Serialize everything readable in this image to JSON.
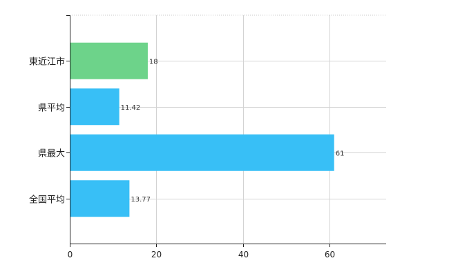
{
  "chart_data": {
    "type": "bar",
    "orientation": "horizontal",
    "categories": [
      "東近江市",
      "県平均",
      "県最大",
      "全国平均"
    ],
    "values": [
      18,
      11.42,
      61,
      13.77
    ],
    "value_labels": [
      "18",
      "11.42",
      "61",
      "13.77"
    ],
    "bar_colors": [
      "#6dd38a",
      "#38bff6",
      "#38bff6",
      "#38bff6"
    ],
    "xlim": [
      0,
      73
    ],
    "xticks": [
      0,
      20,
      40,
      60
    ],
    "xtick_labels": [
      "0",
      "20",
      "40",
      "60"
    ],
    "grid": true,
    "title": "",
    "xlabel": "",
    "ylabel": ""
  }
}
